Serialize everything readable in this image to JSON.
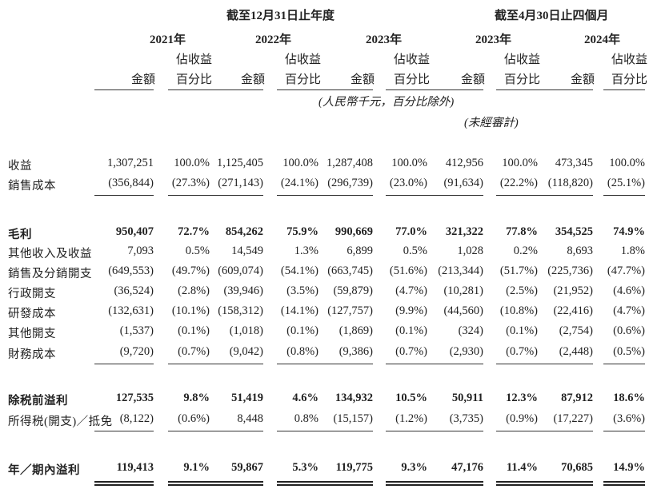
{
  "header": {
    "group_fy": "截至12月31日止年度",
    "group_4m": "截至4月30日止四個月",
    "years": [
      "2021年",
      "2022年",
      "2023年",
      "2023年",
      "2024年"
    ],
    "col_amount": "金額",
    "col_pct_top": "佔收益",
    "col_pct_bottom": "百分比",
    "unit_note": "(人民幣千元，百分比除外)",
    "unaudited_note": "(未經審計)"
  },
  "rows": [
    {
      "label": "收益",
      "bold": false,
      "values": [
        "1,307,251",
        "100.0%",
        "1,125,405",
        "100.0%",
        "1,287,408",
        "100.0%",
        "412,956",
        "100.0%",
        "473,345",
        "100.0%"
      ]
    },
    {
      "label": "銷售成本",
      "bold": false,
      "values": [
        "(356,844)",
        "(27.3%)",
        "(271,143)",
        "(24.1%)",
        "(296,739)",
        "(23.0%)",
        "(91,634)",
        "(22.2%)",
        "(118,820)",
        "(25.1%)"
      ]
    },
    {
      "label": "毛利",
      "bold": true,
      "values": [
        "950,407",
        "72.7%",
        "854,262",
        "75.9%",
        "990,669",
        "77.0%",
        "321,322",
        "77.8%",
        "354,525",
        "74.9%"
      ]
    },
    {
      "label": "其他收入及收益",
      "bold": false,
      "values": [
        "7,093",
        "0.5%",
        "14,549",
        "1.3%",
        "6,899",
        "0.5%",
        "1,028",
        "0.2%",
        "8,693",
        "1.8%"
      ]
    },
    {
      "label": "銷售及分銷開支",
      "bold": false,
      "values": [
        "(649,553)",
        "(49.7%)",
        "(609,074)",
        "(54.1%)",
        "(663,745)",
        "(51.6%)",
        "(213,344)",
        "(51.7%)",
        "(225,736)",
        "(47.7%)"
      ]
    },
    {
      "label": "行政開支",
      "bold": false,
      "values": [
        "(36,524)",
        "(2.8%)",
        "(39,946)",
        "(3.5%)",
        "(59,879)",
        "(4.7%)",
        "(10,281)",
        "(2.5%)",
        "(21,952)",
        "(4.6%)"
      ]
    },
    {
      "label": "研發成本",
      "bold": false,
      "values": [
        "(132,631)",
        "(10.1%)",
        "(158,312)",
        "(14.1%)",
        "(127,757)",
        "(9.9%)",
        "(44,560)",
        "(10.8%)",
        "(22,416)",
        "(4.7%)"
      ]
    },
    {
      "label": "其他開支",
      "bold": false,
      "values": [
        "(1,537)",
        "(0.1%)",
        "(1,018)",
        "(0.1%)",
        "(1,869)",
        "(0.1%)",
        "(324)",
        "(0.1%)",
        "(2,754)",
        "(0.6%)"
      ]
    },
    {
      "label": "財務成本",
      "bold": false,
      "values": [
        "(9,720)",
        "(0.7%)",
        "(9,042)",
        "(0.8%)",
        "(9,386)",
        "(0.7%)",
        "(2,930)",
        "(0.7%)",
        "(2,448)",
        "(0.5%)"
      ]
    },
    {
      "label": "除税前溢利",
      "bold": true,
      "values": [
        "127,535",
        "9.8%",
        "51,419",
        "4.6%",
        "134,932",
        "10.5%",
        "50,911",
        "12.3%",
        "87,912",
        "18.6%"
      ]
    },
    {
      "label": "所得税(開支)／抵免",
      "bold": false,
      "values": [
        "(8,122)",
        "(0.6%)",
        "8,448",
        "0.8%",
        "(15,157)",
        "(1.2%)",
        "(3,735)",
        "(0.9%)",
        "(17,227)",
        "(3.6%)"
      ]
    },
    {
      "label": "年／期內溢利",
      "bold": true,
      "values": [
        "119,413",
        "9.1%",
        "59,867",
        "5.3%",
        "119,775",
        "9.3%",
        "47,176",
        "11.4%",
        "70,685",
        "14.9%"
      ]
    }
  ]
}
